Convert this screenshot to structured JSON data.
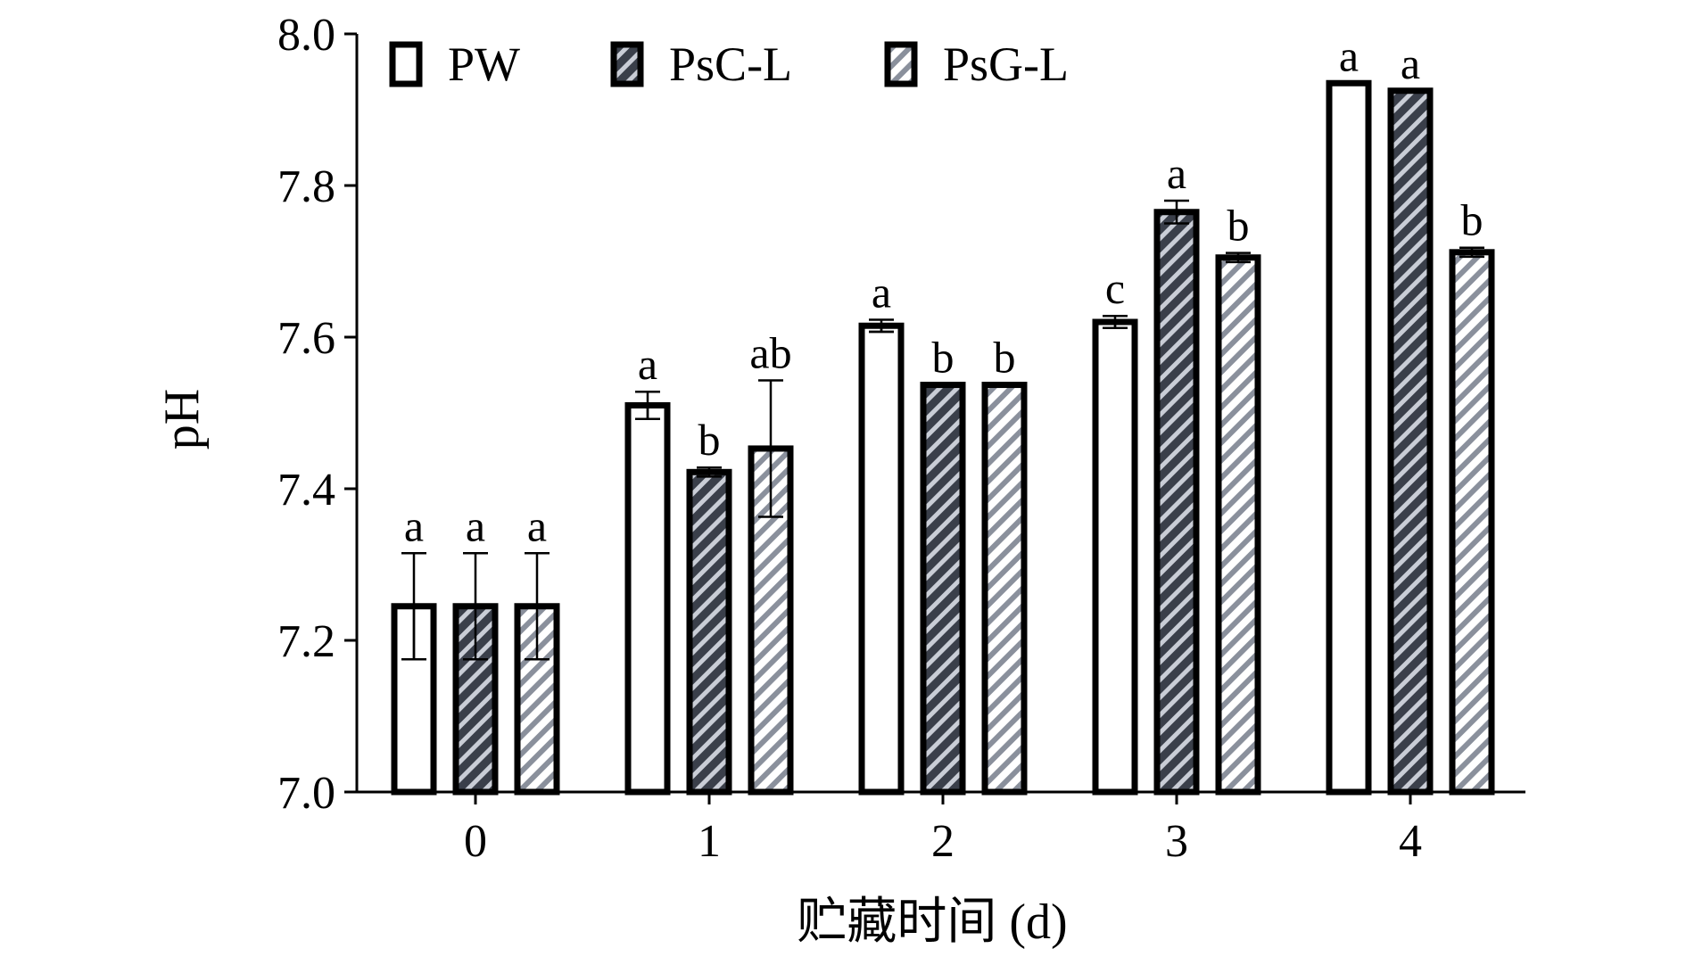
{
  "chart_data": {
    "type": "bar",
    "title": "",
    "xlabel": "贮藏时间 (d)",
    "ylabel": "pH",
    "ylim": [
      7.0,
      8.0
    ],
    "yticks": [
      "7.0",
      "7.2",
      "7.4",
      "7.6",
      "7.8",
      "8.0"
    ],
    "categories": [
      "0",
      "1",
      "2",
      "3",
      "4"
    ],
    "legend_position": "top-left",
    "grid": false,
    "series": [
      {
        "name": "PW",
        "fill": "white",
        "values": [
          7.245,
          7.51,
          7.615,
          7.62,
          7.935
        ],
        "errors": [
          0.07,
          0.018,
          0.008,
          0.008,
          0.0
        ],
        "labels": [
          "a",
          "a",
          "a",
          "c",
          "a"
        ]
      },
      {
        "name": "PsC-L",
        "fill": "dark-hatch",
        "values": [
          7.245,
          7.422,
          7.537,
          7.765,
          7.925
        ],
        "errors": [
          0.07,
          0.006,
          0.0,
          0.015,
          0.0
        ],
        "labels": [
          "a",
          "b",
          "b",
          "a",
          "a"
        ]
      },
      {
        "name": "PsG-L",
        "fill": "light-hatch",
        "values": [
          7.245,
          7.453,
          7.537,
          7.705,
          7.712
        ],
        "errors": [
          0.07,
          0.09,
          0.0,
          0.006,
          0.006
        ],
        "labels": [
          "a",
          "ab",
          "b",
          "b",
          "b"
        ]
      }
    ]
  }
}
